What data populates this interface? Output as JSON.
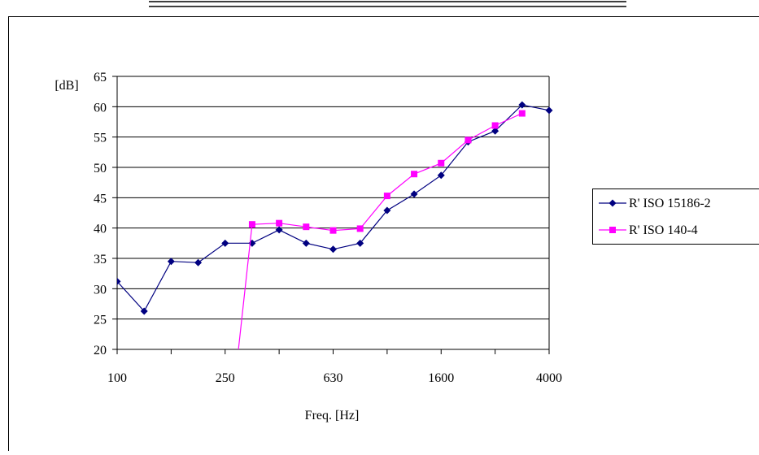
{
  "chart_data": {
    "type": "line",
    "title": "",
    "xlabel": "Freq. [Hz]",
    "ylabel": "[dB]",
    "x": [
      "100",
      "125",
      "160",
      "200",
      "250",
      "315",
      "400",
      "500",
      "630",
      "800",
      "1000",
      "1250",
      "1600",
      "2000",
      "2500",
      "3150",
      "4000"
    ],
    "x_tick_labels": [
      "100",
      "250",
      "630",
      "1600",
      "4000"
    ],
    "y_ticks": [
      20,
      25,
      30,
      35,
      40,
      45,
      50,
      55,
      60,
      65
    ],
    "ylim": [
      20,
      65
    ],
    "grid": "horizontal",
    "legend_position": "right",
    "series": [
      {
        "name": "R' ISO 15186-2",
        "color": "#000080",
        "marker": "diamond",
        "values": [
          31.2,
          26.3,
          34.5,
          34.3,
          37.5,
          37.5,
          39.7,
          37.5,
          36.5,
          37.5,
          42.9,
          45.6,
          48.7,
          54.2,
          56.0,
          60.3,
          59.4
        ]
      },
      {
        "name": "R' ISO 140-4",
        "color": "#ff00ff",
        "marker": "square",
        "values": [
          null,
          null,
          null,
          null,
          0,
          40.6,
          40.8,
          40.2,
          39.6,
          39.9,
          45.3,
          48.9,
          50.7,
          54.5,
          56.9,
          58.9,
          null
        ]
      }
    ]
  }
}
